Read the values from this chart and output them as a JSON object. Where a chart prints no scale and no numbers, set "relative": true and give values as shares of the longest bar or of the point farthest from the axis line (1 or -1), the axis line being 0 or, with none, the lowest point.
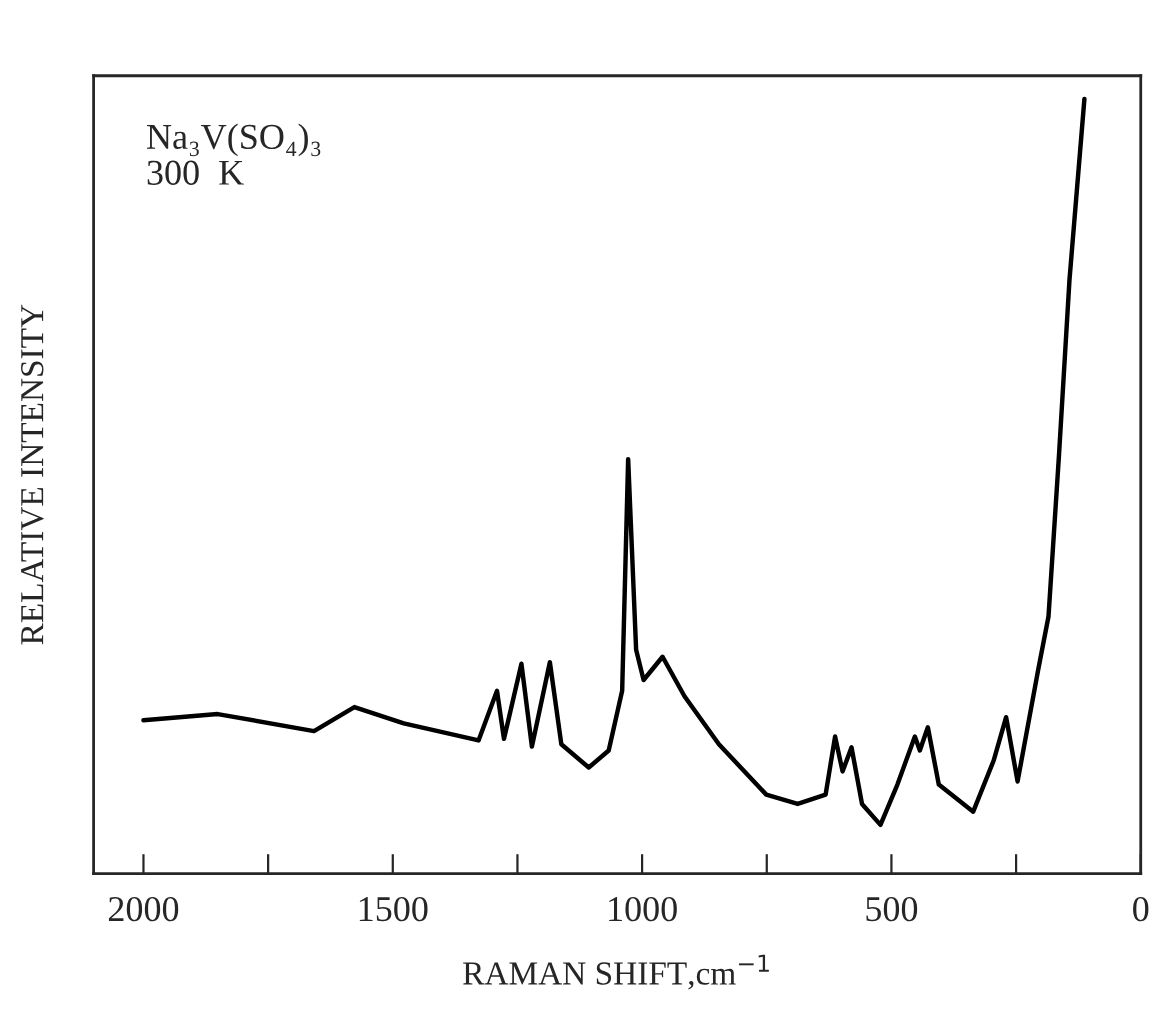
{
  "chart_data": {
    "type": "line",
    "relative": true,
    "xlabel": "RAMAN SHIFT,cm$^{−1}$",
    "ylabel": "RELATIVE INTENSITY",
    "annotations": [
      "Na₃V(SO₄)₃",
      "300  K"
    ],
    "xlim": [
      2100,
      0
    ],
    "xticks": [
      2000,
      {
        "value": 1750,
        "label": null
      },
      1500,
      {
        "value": 1250,
        "label": null
      },
      1000,
      {
        "value": 750,
        "label": null
      },
      500,
      {
        "value": 250,
        "label": null
      },
      0
    ],
    "tick_labels": "x",
    "marker": "none",
    "line_style": "solid",
    "series": [
      {
        "color": "#000000",
        "x": [
          2000,
          1851,
          1658,
          1577,
          1478,
          1328,
          1291,
          1277,
          1242,
          1221,
          1185,
          1162,
          1107,
          1067,
          1040,
          1028,
          1012,
          997,
          959,
          915,
          846,
          751,
          688,
          632,
          613,
          598,
          580,
          559,
          522,
          488,
          453,
          443,
          427,
          405,
          336,
          295,
          270,
          247,
          206,
          185,
          164,
          143,
          113
        ],
        "values": [
          0.198,
          0.206,
          0.184,
          0.215,
          0.194,
          0.172,
          0.236,
          0.174,
          0.271,
          0.164,
          0.273,
          0.167,
          0.137,
          0.159,
          0.236,
          0.535,
          0.289,
          0.25,
          0.28,
          0.229,
          0.167,
          0.102,
          0.09,
          0.102,
          0.177,
          0.132,
          0.163,
          0.09,
          0.063,
          0.115,
          0.177,
          0.159,
          0.189,
          0.115,
          0.08,
          0.146,
          0.202,
          0.119,
          0.262,
          0.332,
          0.54,
          0.766,
          1.0
        ]
      }
    ]
  }
}
